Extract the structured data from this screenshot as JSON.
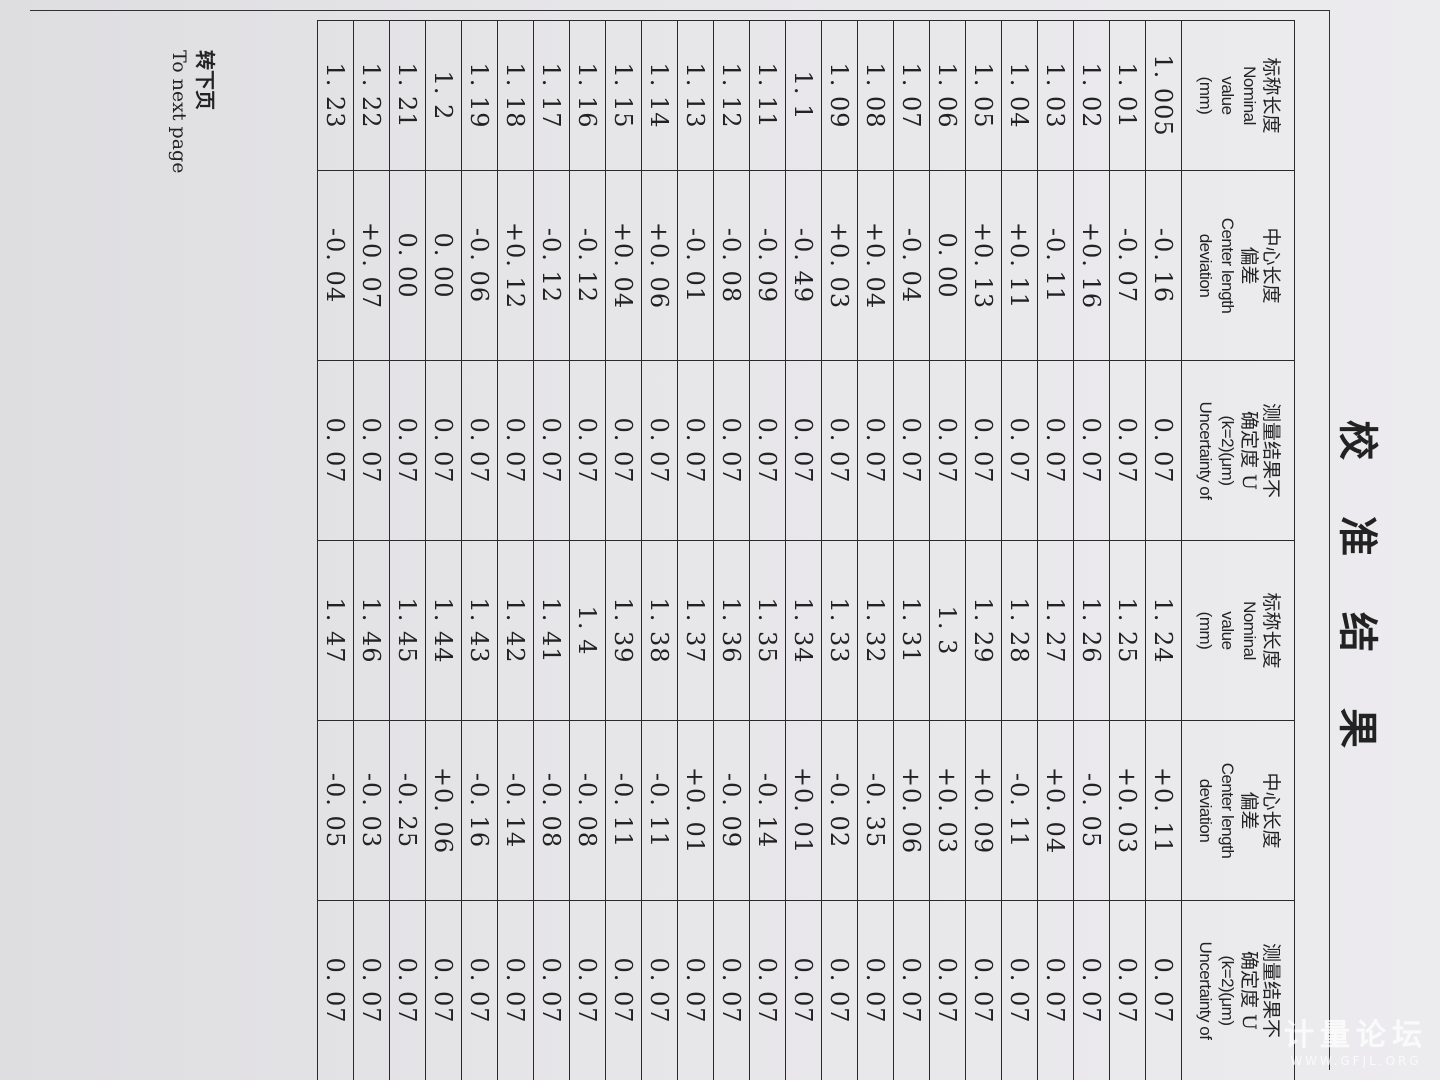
{
  "title": [
    "校",
    "准",
    "结",
    "果"
  ],
  "headers": {
    "nominal": {
      "cn": "标称长度",
      "en": "Nominal",
      "en2": "value",
      "unit": "(mm)"
    },
    "deviation": {
      "cn": "中心长度",
      "cn2": "偏差",
      "en": "Center length",
      "en2": "deviation"
    },
    "uncertainty": {
      "cn": "测量结果不",
      "cn2": "确定度 U",
      "en": "(k=2)(μm)",
      "en2": "Uncertainty  of"
    }
  },
  "rows": [
    [
      "1. 005",
      "-0. 16",
      "0. 07",
      "1. 24",
      "+0. 11",
      "0. 07"
    ],
    [
      "1. 01",
      "-0. 07",
      "0. 07",
      "1. 25",
      "+0. 03",
      "0. 07"
    ],
    [
      "1. 02",
      "+0. 16",
      "0. 07",
      "1. 26",
      "-0. 05",
      "0. 07"
    ],
    [
      "1. 03",
      "-0. 11",
      "0. 07",
      "1. 27",
      "+0. 04",
      "0. 07"
    ],
    [
      "1. 04",
      "+0. 11",
      "0. 07",
      "1. 28",
      "-0. 11",
      "0. 07"
    ],
    [
      "1. 05",
      "+0. 13",
      "0. 07",
      "1. 29",
      "+0. 09",
      "0. 07"
    ],
    [
      "1. 06",
      "0. 00",
      "0. 07",
      "1. 3",
      "+0. 03",
      "0. 07"
    ],
    [
      "1. 07",
      "-0. 04",
      "0. 07",
      "1. 31",
      "+0. 06",
      "0. 07"
    ],
    [
      "1. 08",
      "+0. 04",
      "0. 07",
      "1. 32",
      "-0. 35",
      "0. 07"
    ],
    [
      "1. 09",
      "+0. 03",
      "0. 07",
      "1. 33",
      "-0. 02",
      "0. 07"
    ],
    [
      "1. 1",
      "-0. 49",
      "0. 07",
      "1. 34",
      "+0. 01",
      "0. 07"
    ],
    [
      "1. 11",
      "-0. 09",
      "0. 07",
      "1. 35",
      "-0. 14",
      "0. 07"
    ],
    [
      "1. 12",
      "-0. 08",
      "0. 07",
      "1. 36",
      "-0. 09",
      "0. 07"
    ],
    [
      "1. 13",
      "-0. 01",
      "0. 07",
      "1. 37",
      "+0. 01",
      "0. 07"
    ],
    [
      "1. 14",
      "+0. 06",
      "0. 07",
      "1. 38",
      "-0. 11",
      "0. 07"
    ],
    [
      "1. 15",
      "+0. 04",
      "0. 07",
      "1. 39",
      "-0. 11",
      "0. 07"
    ],
    [
      "1. 16",
      "-0. 12",
      "0. 07",
      "1. 4",
      "-0. 08",
      "0. 07"
    ],
    [
      "1. 17",
      "-0. 12",
      "0. 07",
      "1. 41",
      "-0. 08",
      "0. 07"
    ],
    [
      "1. 18",
      "+0. 12",
      "0. 07",
      "1. 42",
      "-0. 14",
      "0. 07"
    ],
    [
      "1. 19",
      "-0. 06",
      "0. 07",
      "1. 43",
      "-0. 16",
      "0. 07"
    ],
    [
      "1. 2",
      "0. 00",
      "0. 07",
      "1. 44",
      "+0. 06",
      "0. 07"
    ],
    [
      "1. 21",
      "0. 00",
      "0. 07",
      "1. 45",
      "-0. 25",
      "0. 07"
    ],
    [
      "1. 22",
      "+0. 07",
      "0. 07",
      "1. 46",
      "-0. 03",
      "0. 07"
    ],
    [
      "1. 23",
      "-0. 04",
      "0. 07",
      "1. 47",
      "-0. 05",
      "0. 07"
    ]
  ],
  "footer": {
    "cn": "转下页",
    "en": "To next page"
  },
  "watermark": {
    "cn": "计量论坛",
    "url": "WWW.GFJL.ORG"
  }
}
